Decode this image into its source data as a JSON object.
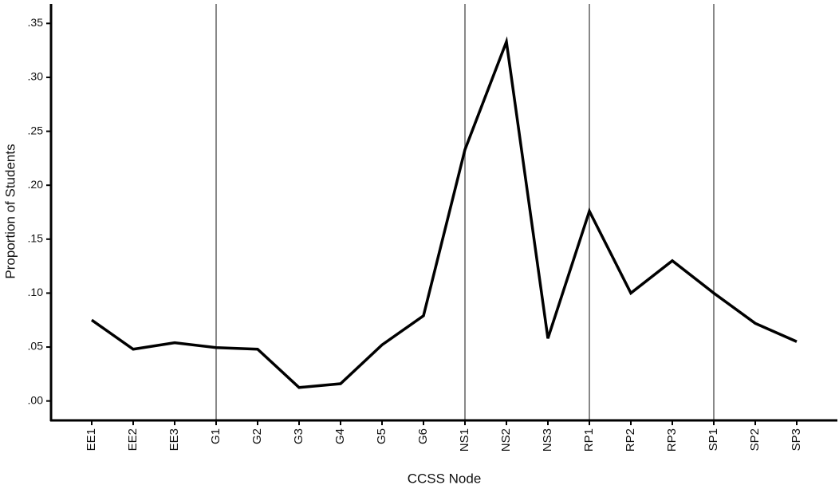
{
  "chart_data": {
    "type": "line",
    "x_label": "CCSS Node",
    "y_label": "Proportion of Students",
    "categories": [
      "EE1",
      "EE2",
      "EE3",
      "G1",
      "G2",
      "G3",
      "G4",
      "G5",
      "G6",
      "NS1",
      "NS2",
      "NS3",
      "RP1",
      "RP2",
      "RP3",
      "SP1",
      "SP2",
      "SP3"
    ],
    "values": [
      0.075,
      0.048,
      0.054,
      0.0495,
      0.048,
      0.0125,
      0.016,
      0.052,
      0.079,
      0.233,
      0.333,
      0.058,
      0.176,
      0.1,
      0.13,
      0.1,
      0.072,
      0.055
    ],
    "color": "#000000",
    "reference_lines": [
      "G1",
      "NS1",
      "RP1",
      "SP1"
    ],
    "reference_color": "#888888",
    "ylim": [
      -0.018,
      0.368
    ],
    "yticks": [
      {
        "value": 0,
        "label": ".00"
      },
      {
        "value": 0.05,
        "label": ".05"
      },
      {
        "value": 0.1,
        "label": ".10"
      },
      {
        "value": 0.15,
        "label": ".15"
      },
      {
        "value": 0.2,
        "label": ".20"
      },
      {
        "value": 0.25,
        "label": ".25"
      },
      {
        "value": 0.3,
        "label": ".30"
      },
      {
        "value": 0.35,
        "label": ".35"
      }
    ]
  }
}
